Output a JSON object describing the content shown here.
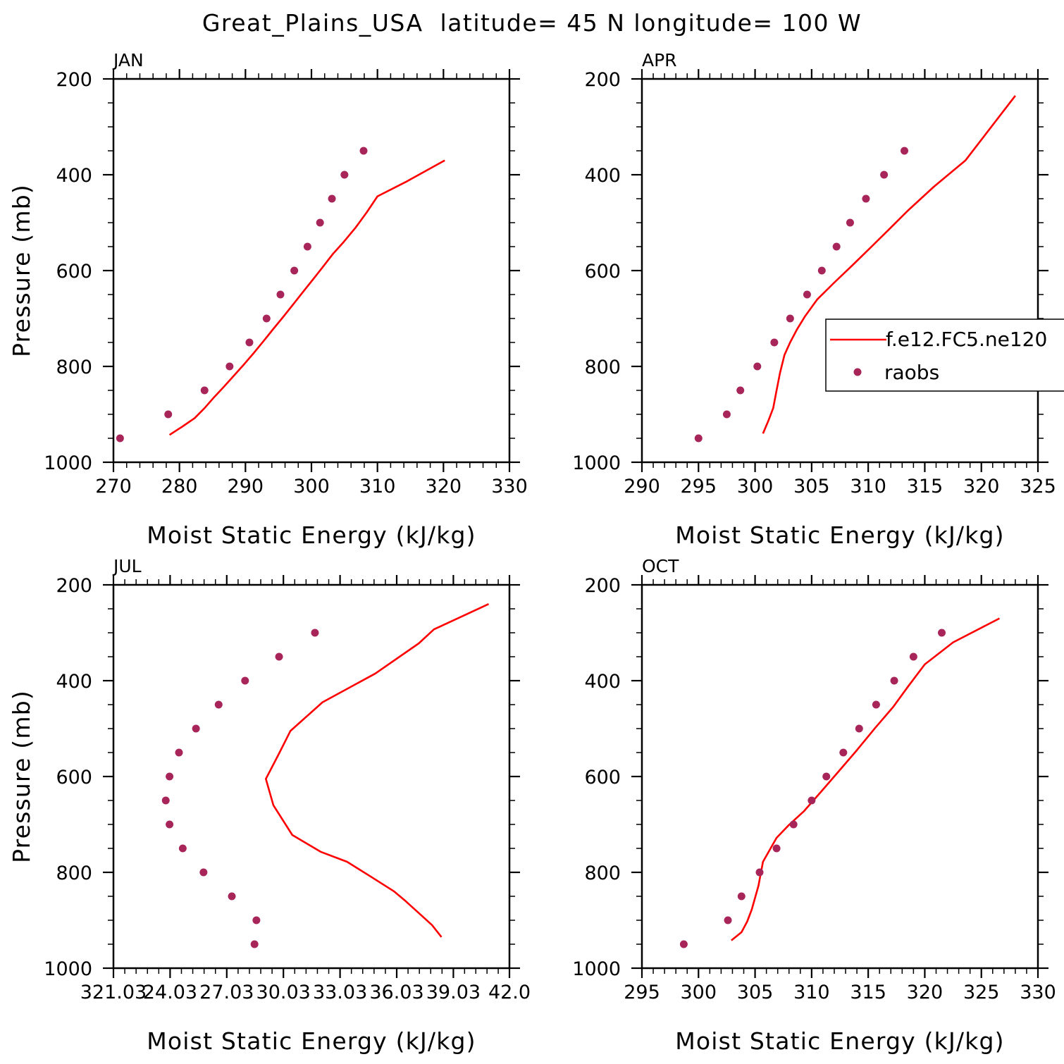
{
  "title": "Great_Plains_USA  latitude= 45 N longitude= 100 W",
  "colors": {
    "model": "#ff0000",
    "obs": "#a8255a",
    "axis": "#000000"
  },
  "chart_data": [
    {
      "type": "line",
      "panel": "JAN",
      "xlabel": "Moist Static Energy (kJ/kg)",
      "ylabel": "Pressure (mb)",
      "xlim": [
        270,
        330
      ],
      "xticks": [
        270,
        280,
        290,
        300,
        310,
        320,
        330
      ],
      "xtick_labels": [
        "270",
        "280",
        "290",
        "300",
        "310",
        "320",
        "330"
      ],
      "ylim": [
        1000,
        200
      ],
      "yticks": [
        200,
        400,
        600,
        800,
        1000
      ],
      "series": [
        {
          "name": "f.e12.FC5.ne120",
          "kind": "line",
          "x": [
            278.5,
            280.5,
            282.3,
            283.8,
            285.2,
            286.7,
            288.2,
            289.7,
            291.2,
            292.7,
            294.2,
            295.7,
            297.2,
            298.7,
            300.2,
            301.7,
            303.2,
            304.9,
            306.7,
            308.4,
            310.0,
            314.3,
            320.2
          ],
          "y": [
            943,
            925,
            908,
            887,
            865,
            843,
            820,
            797,
            773,
            748,
            722,
            697,
            671,
            645,
            619,
            593,
            566,
            540,
            510,
            478,
            445,
            415,
            370
          ]
        },
        {
          "name": "raobs",
          "kind": "scatter",
          "x": [
            271.0,
            278.3,
            283.8,
            287.6,
            290.6,
            293.2,
            295.3,
            297.4,
            299.4,
            301.3,
            303.1,
            305.0,
            307.9
          ],
          "y": [
            950,
            900,
            850,
            800,
            750,
            700,
            650,
            600,
            550,
            500,
            450,
            400,
            350
          ]
        }
      ]
    },
    {
      "type": "line",
      "panel": "APR",
      "xlabel": "Moist Static Energy (kJ/kg)",
      "ylabel": "",
      "xlim": [
        290,
        325
      ],
      "xticks": [
        290,
        295,
        300,
        305,
        310,
        315,
        320,
        325
      ],
      "xtick_labels": [
        "290",
        "295",
        "300",
        "305",
        "310",
        "315",
        "320",
        "325"
      ],
      "ylim": [
        1000,
        200
      ],
      "yticks": [
        200,
        400,
        600,
        800,
        1000
      ],
      "series": [
        {
          "name": "f.e12.FC5.ne120",
          "kind": "line",
          "x": [
            300.7,
            301.2,
            301.6,
            301.9,
            302.2,
            302.6,
            303.1,
            303.7,
            304.4,
            305.5,
            307.0,
            308.6,
            310.2,
            311.8,
            313.5,
            315.8,
            318.6,
            323.0
          ],
          "y": [
            940,
            912,
            887,
            850,
            814,
            776,
            750,
            723,
            696,
            660,
            625,
            589,
            552,
            515,
            475,
            425,
            370,
            235
          ]
        },
        {
          "name": "raobs",
          "kind": "scatter",
          "x": [
            295.0,
            297.5,
            298.7,
            300.2,
            301.7,
            303.1,
            304.6,
            305.9,
            307.2,
            308.4,
            309.8,
            311.4,
            313.2
          ],
          "y": [
            950,
            900,
            850,
            800,
            750,
            700,
            650,
            600,
            550,
            500,
            450,
            400,
            350
          ]
        }
      ],
      "legend": {
        "placement": "right",
        "entries": [
          "f.e12.FC5.ne120",
          "raobs"
        ]
      }
    },
    {
      "type": "line",
      "panel": "JUL",
      "xlabel": "Moist Static Energy (kJ/kg)",
      "ylabel": "Pressure (mb)",
      "xlim": [
        321.03,
        342.0
      ],
      "xticks": [
        321.03,
        324.03,
        327.03,
        330.03,
        333.03,
        336.03,
        339.03,
        342.0
      ],
      "xtick_labels": [
        "321.03",
        "24.03",
        "27.03",
        "30.03",
        "33.03",
        "36.03",
        "39.03",
        "42.0"
      ],
      "ylim": [
        1000,
        200
      ],
      "yticks": [
        200,
        400,
        600,
        800,
        1000
      ],
      "series": [
        {
          "name": "f.e12.FC5.ne120",
          "kind": "line",
          "x": [
            338.4,
            337.9,
            337.2,
            336.5,
            335.9,
            334.7,
            333.4,
            332.0,
            330.5,
            329.5,
            329.1,
            329.8,
            330.4,
            332.1,
            334.9,
            337.2,
            338.0,
            340.9
          ],
          "y": [
            935,
            910,
            885,
            860,
            840,
            810,
            778,
            757,
            722,
            660,
            605,
            552,
            505,
            445,
            385,
            322,
            293,
            240
          ]
        },
        {
          "name": "raobs",
          "kind": "scatter",
          "x": [
            328.5,
            328.6,
            327.3,
            325.8,
            324.7,
            324.0,
            323.8,
            324.0,
            324.5,
            325.4,
            326.6,
            328.0,
            329.8,
            331.7
          ],
          "y": [
            950,
            900,
            850,
            800,
            750,
            700,
            650,
            600,
            550,
            500,
            450,
            400,
            350,
            300
          ]
        }
      ]
    },
    {
      "type": "line",
      "panel": "OCT",
      "xlabel": "Moist Static Energy (kJ/kg)",
      "ylabel": "",
      "xlim": [
        295,
        330
      ],
      "xticks": [
        295,
        300,
        305,
        310,
        315,
        320,
        325,
        330
      ],
      "xtick_labels": [
        "295",
        "300",
        "305",
        "310",
        "315",
        "320",
        "325",
        "330"
      ],
      "ylim": [
        1000,
        200
      ],
      "yticks": [
        200,
        400,
        600,
        800,
        1000
      ],
      "series": [
        {
          "name": "f.e12.FC5.ne120",
          "kind": "line",
          "x": [
            302.9,
            303.8,
            304.3,
            304.7,
            305.0,
            305.3,
            305.7,
            306.9,
            308.0,
            309.3,
            310.9,
            312.4,
            314.0,
            315.6,
            317.2,
            318.5,
            320.0,
            322.5,
            326.6
          ],
          "y": [
            942,
            925,
            903,
            878,
            853,
            828,
            778,
            728,
            701,
            673,
            630,
            589,
            545,
            499,
            455,
            413,
            366,
            320,
            270
          ]
        },
        {
          "name": "raobs",
          "kind": "scatter",
          "x": [
            298.7,
            302.6,
            303.8,
            305.4,
            306.9,
            308.4,
            310.0,
            311.3,
            312.8,
            314.2,
            315.7,
            317.3,
            319.0,
            321.5
          ],
          "y": [
            950,
            900,
            850,
            800,
            750,
            700,
            650,
            600,
            550,
            500,
            450,
            400,
            350,
            300
          ]
        }
      ]
    }
  ]
}
